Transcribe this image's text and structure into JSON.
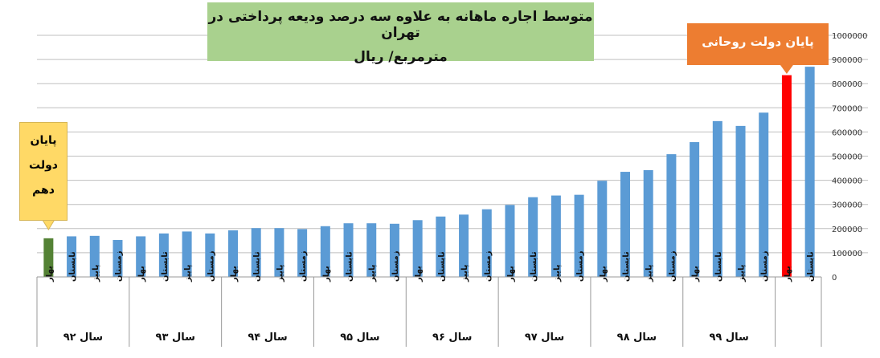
{
  "title": {
    "line1": "متوسط اجاره ماهانه به علاوه سه درصد ودیعه پرداختی در تهران",
    "line2": "مترمربع/ ریال"
  },
  "callouts": {
    "right": "پایان دولت روحانی",
    "left": [
      "پایان",
      "دولت",
      "دهم"
    ]
  },
  "colors": {
    "bar": "#5b9bd5",
    "start_bar": "#548235",
    "end_bar": "#ff0000",
    "title_bg": "#a9d18e",
    "callout_right_bg": "#ed7d31",
    "callout_left_bg": "#ffd966"
  },
  "chart_data": {
    "type": "bar",
    "y_ticks": [
      "0",
      "100000",
      "200000",
      "300000",
      "400000",
      "500000",
      "600000",
      "700000",
      "800000",
      "900000",
      "1000000"
    ],
    "ylim": [
      0,
      1000000
    ],
    "grid": true,
    "season_labels": [
      "بهار",
      "تابستان",
      "پاییز",
      "زمستان"
    ],
    "groups": [
      {
        "label": "سال ۹۲",
        "values": [
          160000,
          168000,
          170000,
          153000
        ]
      },
      {
        "label": "سال ۹۳",
        "values": [
          168000,
          180000,
          188000,
          180000
        ]
      },
      {
        "label": "سال ۹۴",
        "values": [
          193000,
          202000,
          202000,
          198000
        ]
      },
      {
        "label": "سال ۹۵",
        "values": [
          210000,
          222000,
          222000,
          220000
        ]
      },
      {
        "label": "سال ۹۶",
        "values": [
          235000,
          250000,
          258000,
          280000
        ]
      },
      {
        "label": "سال ۹۷",
        "values": [
          298000,
          330000,
          337000,
          340000
        ]
      },
      {
        "label": "سال ۹۸",
        "values": [
          398000,
          435000,
          442000,
          508000
        ]
      },
      {
        "label": "سال ۹۹",
        "values": [
          558000,
          645000,
          625000,
          680000
        ]
      },
      {
        "label": "",
        "values": [
          835000,
          870000
        ],
        "seasons": [
          "بهار",
          "تابستان"
        ]
      }
    ]
  }
}
